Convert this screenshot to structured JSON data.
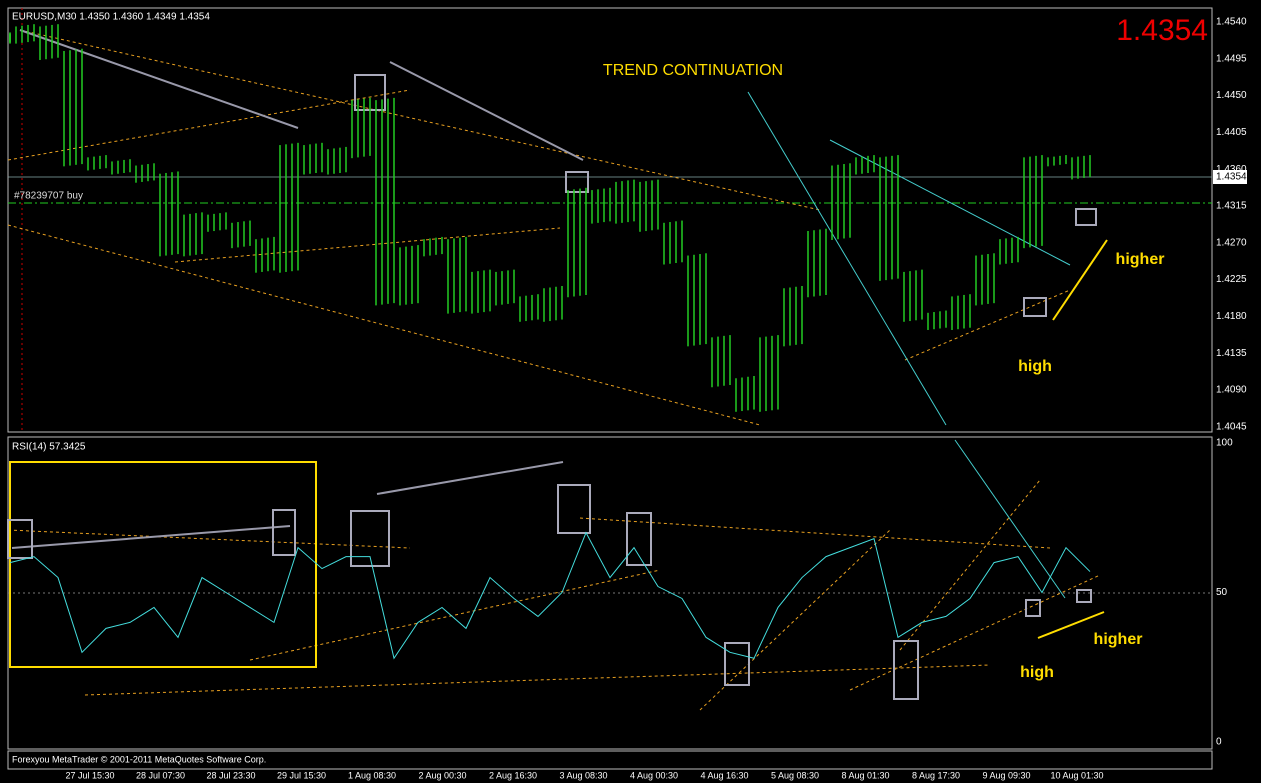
{
  "header": {
    "symbol_info": "EURUSD,M30  1.4350 1.4360 1.4349 1.4354",
    "big_price": "1.4354",
    "order_label": "#78239707 buy",
    "current_price": "1.4354"
  },
  "annotations": {
    "title": "TREND CONTINUATION",
    "price_high": "high",
    "price_higher": "higher",
    "rsi_high": "high",
    "rsi_higher": "higher"
  },
  "price_axis": {
    "ticks": [
      "1.4540",
      "1.4495",
      "1.4450",
      "1.4405",
      "1.4360",
      "1.4315",
      "1.4270",
      "1.4225",
      "1.4180",
      "1.4135",
      "1.4090",
      "1.4045"
    ]
  },
  "price": {
    "values": [
      1.452,
      1.453,
      1.45,
      1.437,
      1.4365,
      1.436,
      1.435,
      1.426,
      1.43,
      1.429,
      1.427,
      1.424,
      1.4385,
      1.436,
      1.438,
      1.444,
      1.42,
      1.426,
      1.427,
      1.419,
      1.423,
      1.42,
      1.418,
      1.421,
      1.433,
      1.43,
      1.434,
      1.429,
      1.425,
      1.415,
      1.41,
      1.407,
      1.415,
      1.421,
      1.428,
      1.436,
      1.437,
      1.423,
      1.418,
      1.417,
      1.42,
      1.425,
      1.427,
      1.437,
      1.437,
      1.4354
    ]
  },
  "rsi": {
    "label": "RSI(14) 57.3425",
    "ticks": [
      "100",
      "50",
      "0"
    ],
    "values": [
      60,
      62,
      55,
      30,
      38,
      40,
      45,
      35,
      55,
      50,
      45,
      40,
      65,
      58,
      62,
      62,
      28,
      40,
      45,
      38,
      55,
      48,
      42,
      50,
      70,
      55,
      65,
      52,
      48,
      35,
      30,
      28,
      45,
      55,
      62,
      65,
      68,
      35,
      40,
      42,
      48,
      60,
      62,
      50,
      65,
      57
    ]
  },
  "footer": {
    "copyright": "Forexyou MetaTrader  © 2001-2011 MetaQuotes Software Corp.",
    "time_labels": [
      "27 Jul 15:30",
      "28 Jul 07:30",
      "28 Jul 23:30",
      "29 Jul 15:30",
      "1 Aug 08:30",
      "2 Aug 00:30",
      "2 Aug 16:30",
      "3 Aug 08:30",
      "4 Aug 00:30",
      "4 Aug 16:30",
      "5 Aug 08:30",
      "8 Aug 01:30",
      "8 Aug 17:30",
      "9 Aug 09:30",
      "10 Aug 01:30"
    ]
  }
}
